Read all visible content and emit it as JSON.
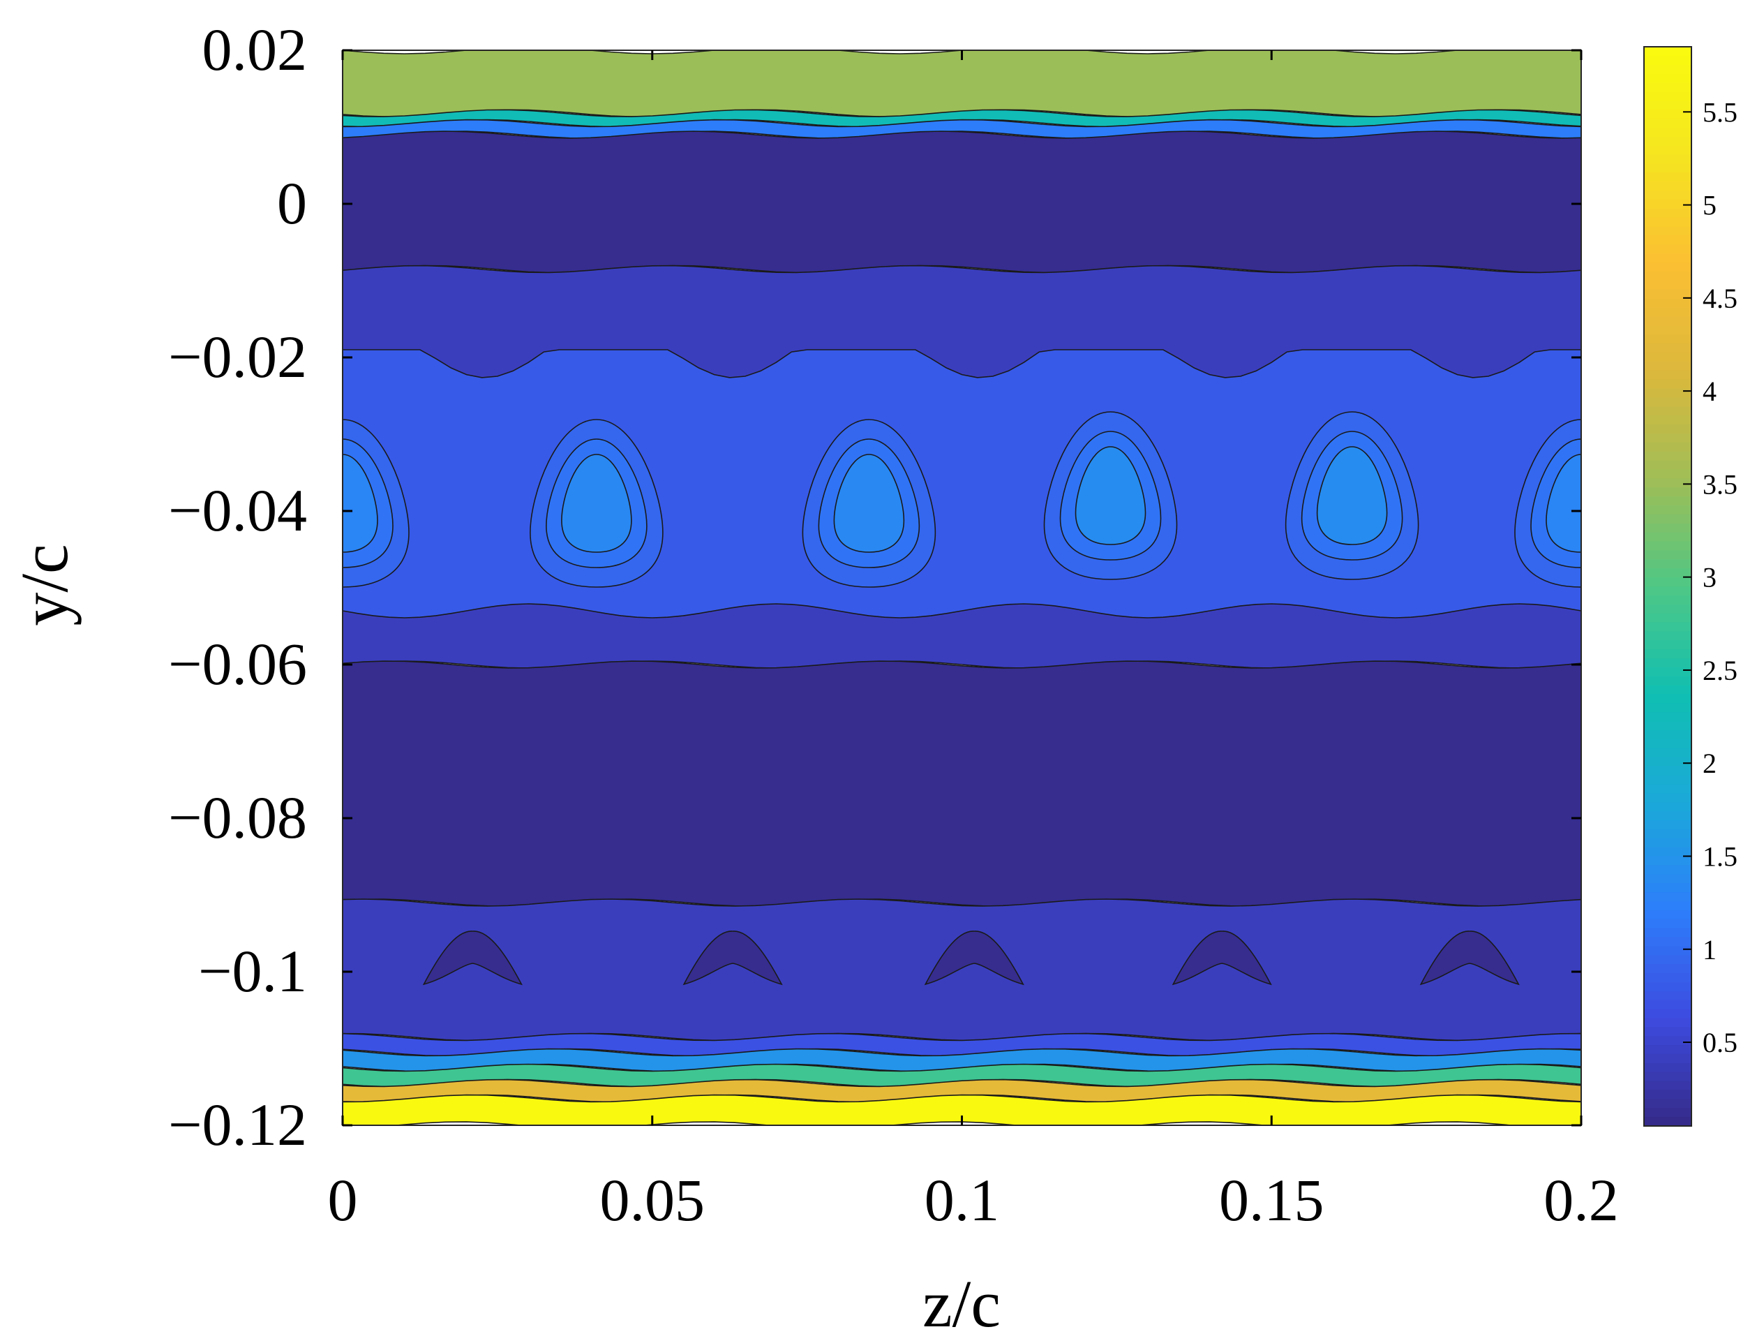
{
  "chart_data": {
    "type": "heatmap",
    "subtype": "filled-contour",
    "xlabel": "z/c",
    "ylabel": "y/c",
    "xlim": [
      0,
      0.2
    ],
    "ylim": [
      -0.12,
      0.02
    ],
    "x_ticks": [
      0,
      0.05,
      0.1,
      0.15,
      0.2
    ],
    "x_tick_labels": [
      "0",
      "0.05",
      "0.1",
      "0.15",
      "0.2"
    ],
    "y_ticks": [
      0.02,
      0,
      -0.02,
      -0.04,
      -0.06,
      -0.08,
      -0.1,
      -0.12
    ],
    "y_tick_labels": [
      "0.02",
      "0",
      "−0.02",
      "−0.04",
      "−0.06",
      "−0.08",
      "−0.1",
      "−0.12"
    ],
    "colorbar": {
      "range": [
        0.05,
        5.85
      ],
      "ticks": [
        0.5,
        1,
        1.5,
        2,
        2.5,
        3,
        3.5,
        4,
        4.5,
        5,
        5.5
      ],
      "tick_labels": [
        "0.5",
        "1",
        "1.5",
        "2",
        "2.5",
        "3",
        "3.5",
        "4",
        "4.5",
        "5",
        "5.5"
      ],
      "colormap": "parula",
      "colors": [
        "#352a87",
        "#3d4be0",
        "#2d7efa",
        "#1ba9d9",
        "#10bfb2",
        "#4fc785",
        "#a0be56",
        "#dcb83c",
        "#fbbf33",
        "#f5e520",
        "#f9fb0e"
      ]
    },
    "bands": [
      {
        "y": [
          0.0118,
          0.02
        ],
        "value": 3.5
      },
      {
        "y": [
          0.0105,
          0.0118
        ],
        "value": 2.3
      },
      {
        "y": [
          0.009,
          0.0105
        ],
        "value": 1.2
      },
      {
        "y": [
          -0.0085,
          0.009
        ],
        "value": 0.1
      },
      {
        "y": [
          -0.06,
          -0.0085
        ],
        "value": 0.4
      },
      {
        "y": [
          -0.091,
          -0.06
        ],
        "value": 0.1
      },
      {
        "y": [
          -0.1085,
          -0.091
        ],
        "value": 0.4
      },
      {
        "y": [
          -0.1105,
          -0.1085
        ],
        "value": 0.7
      },
      {
        "y": [
          -0.1125,
          -0.1105
        ],
        "value": 1.5
      },
      {
        "y": [
          -0.1145,
          -0.1125
        ],
        "value": 2.8
      },
      {
        "y": [
          -0.1165,
          -0.1145
        ],
        "value": 4.3
      },
      {
        "y": [
          -0.12,
          -0.1165
        ],
        "value": 5.8
      }
    ],
    "mid_band": {
      "y": [
        -0.053,
        -0.019
      ],
      "value": 0.8
    },
    "vortex_cells": [
      {
        "z": 0.0,
        "y": -0.039,
        "value": 1.3
      },
      {
        "z": 0.041,
        "y": -0.039,
        "value": 1.35
      },
      {
        "z": 0.085,
        "y": -0.039,
        "value": 1.35
      },
      {
        "z": 0.124,
        "y": -0.038,
        "value": 1.4
      },
      {
        "z": 0.163,
        "y": -0.038,
        "value": 1.4
      },
      {
        "z": 0.2,
        "y": -0.039,
        "value": 1.3
      }
    ],
    "low_pockets": [
      {
        "z": 0.021,
        "y": -0.1
      },
      {
        "z": 0.063,
        "y": -0.1
      },
      {
        "z": 0.102,
        "y": -0.1
      },
      {
        "z": 0.142,
        "y": -0.1
      },
      {
        "z": 0.182,
        "y": -0.1
      }
    ]
  }
}
